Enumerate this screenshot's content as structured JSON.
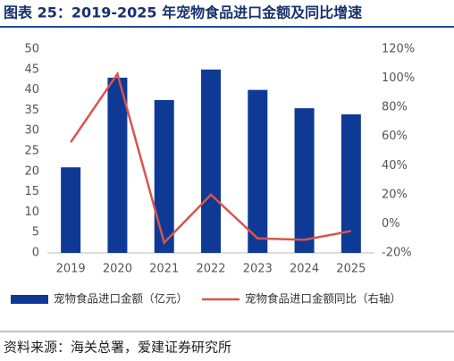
{
  "chart_data": {
    "type": "bar",
    "title": "图表 25：2019-2025 年宠物食品进口金额及同比增速",
    "categories": [
      "2019",
      "2020",
      "2021",
      "2022",
      "2023",
      "2024",
      "2025"
    ],
    "series": [
      {
        "name": "宠物食品进口金额（亿元）",
        "type": "bar",
        "color": "#0e3a96",
        "values": [
          21,
          43,
          37.5,
          45,
          40,
          35.5,
          34
        ]
      },
      {
        "name": "宠物食品进口金额同比（右轴）",
        "type": "line",
        "axis": "y2",
        "color": "#d9534f",
        "values": [
          56,
          103,
          -13,
          20,
          -10,
          -11,
          -5
        ]
      }
    ],
    "ylim": [
      0,
      50
    ],
    "yticks": [
      0,
      5,
      10,
      15,
      20,
      25,
      30,
      35,
      40,
      45,
      50
    ],
    "y2lim": [
      -20,
      120
    ],
    "y2ticks": [
      {
        "value": -20,
        "label": "-20%"
      },
      {
        "value": 0,
        "label": "0%"
      },
      {
        "value": 20,
        "label": "20%"
      },
      {
        "value": 40,
        "label": "40%"
      },
      {
        "value": 60,
        "label": "60%"
      },
      {
        "value": 80,
        "label": "80%"
      },
      {
        "value": 100,
        "label": "100%"
      },
      {
        "value": 120,
        "label": "120%"
      }
    ],
    "legend": "bottom",
    "source": "资料来源：海关总署，爱建证券研究所"
  }
}
